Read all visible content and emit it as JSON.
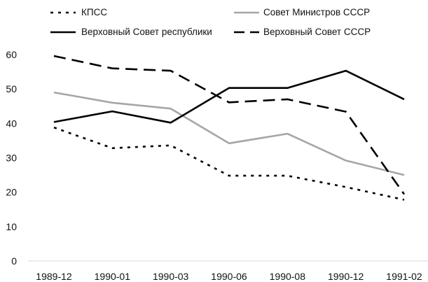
{
  "chart_data": {
    "type": "line",
    "title": "",
    "xlabel": "",
    "ylabel": "",
    "categories": [
      "1989-12",
      "1990-01",
      "1990-03",
      "1990-06",
      "1990-08",
      "1990-12",
      "1991-02"
    ],
    "ylim": [
      0,
      60
    ],
    "yticks": [
      0,
      10,
      20,
      30,
      40,
      50,
      60
    ],
    "grid": false,
    "legend_position": "top",
    "series": [
      {
        "name": "КПСС",
        "values": [
          38.8,
          32.8,
          33.6,
          24.8,
          24.8,
          21.5,
          17.8
        ],
        "color": "#000000",
        "style": "dotted"
      },
      {
        "name": "Совет Министров СССР",
        "values": [
          49.0,
          46.0,
          44.3,
          34.2,
          37.0,
          29.2,
          25.0
        ],
        "color": "#a6a6a6",
        "style": "solid"
      },
      {
        "name": "Верховный Совет республики",
        "values": [
          40.4,
          43.5,
          40.2,
          50.3,
          50.3,
          55.3,
          47.0
        ],
        "color": "#000000",
        "style": "solid"
      },
      {
        "name": "Верховный Совет СССР",
        "values": [
          59.6,
          56.0,
          55.3,
          46.1,
          47.0,
          43.4,
          19.4
        ],
        "color": "#000000",
        "style": "dashed"
      }
    ]
  }
}
